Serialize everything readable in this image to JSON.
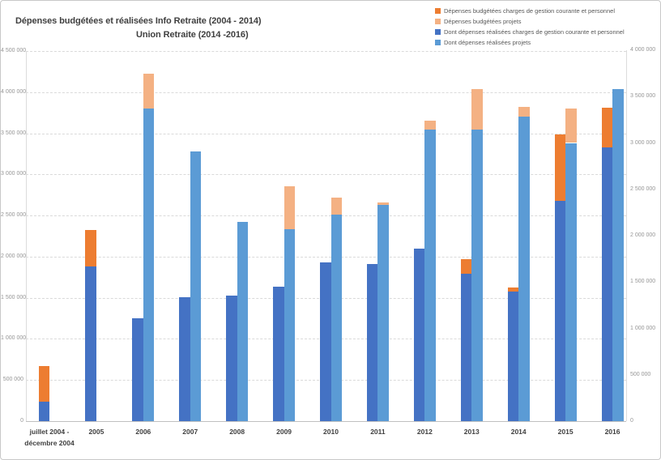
{
  "title": {
    "line1": "Dépenses budgétées et réalisées Info Retraite  (2004 - 2014)",
    "line2": "Union Retraite  (2014 -2016)"
  },
  "chart_data": {
    "type": "bar",
    "subtype": "stacked-columns-dual-axis",
    "title": "Dépenses budgétées et réalisées Info Retraite (2004 - 2014) Union Retraite (2014 -2016)",
    "grid": "on",
    "legend_position": "top-right",
    "categories": [
      "juillet 2004 -\ndécembre 2004",
      "2005",
      "2006",
      "2007",
      "2008",
      "2009",
      "2010",
      "2011",
      "2012",
      "2013",
      "2014",
      "2015",
      "2016"
    ],
    "series": [
      {
        "key": "budgetees-charges",
        "name": "Dépenses budgétées charges de gestion courante et personnel",
        "color": "#ED7D31",
        "axis": "left",
        "stack": "primary",
        "values": [
          430000,
          440000,
          0,
          0,
          0,
          0,
          0,
          0,
          0,
          180000,
          40000,
          810000,
          480000
        ]
      },
      {
        "key": "budgetees-projets",
        "name": "Dépenses budgétées  projets",
        "color": "#F4B183",
        "axis": "right",
        "stack": "secondary",
        "values": [
          0,
          0,
          380000,
          0,
          0,
          460000,
          180000,
          30000,
          100000,
          440000,
          110000,
          370000,
          0
        ]
      },
      {
        "key": "realisees-charges",
        "name": "Dont dépenses réalisées charges de gestion courante et personnel",
        "color": "#4472C4",
        "axis": "left",
        "stack": "primary",
        "values": [
          240000,
          1880000,
          1250000,
          1510000,
          1530000,
          1630000,
          1930000,
          1910000,
          2100000,
          1790000,
          1580000,
          2680000,
          3330000
        ]
      },
      {
        "key": "realisees-projets",
        "name": "Dont dépenses réalisées projets",
        "color": "#5B9BD5",
        "axis": "right",
        "stack": "secondary",
        "values": [
          0,
          0,
          3370000,
          2910000,
          2150000,
          2070000,
          2230000,
          2330000,
          3140000,
          3140000,
          3280000,
          3000000,
          3580000
        ]
      }
    ],
    "stacks": {
      "primary": [
        "realisees-charges",
        "budgetees-charges"
      ],
      "secondary": [
        "realisees-projets",
        "budgetees-projets"
      ]
    },
    "left_axis": {
      "min": 0,
      "max": 4500000,
      "step": 500000,
      "labels": [
        "0",
        "500 000",
        "1 000 000",
        "1 500 000",
        "2 000 000",
        "2 500 000",
        "3 000 000",
        "3 500 000",
        "4 000 000",
        "4 500 000"
      ]
    },
    "right_axis": {
      "min": 0,
      "max": 4000000,
      "step": 500000,
      "labels": [
        "0",
        "500 000",
        "1 000 000",
        "1 500 000",
        "2 000 000",
        "2 500 000",
        "3 000 000",
        "3 500 000",
        "4 000 000"
      ]
    }
  }
}
